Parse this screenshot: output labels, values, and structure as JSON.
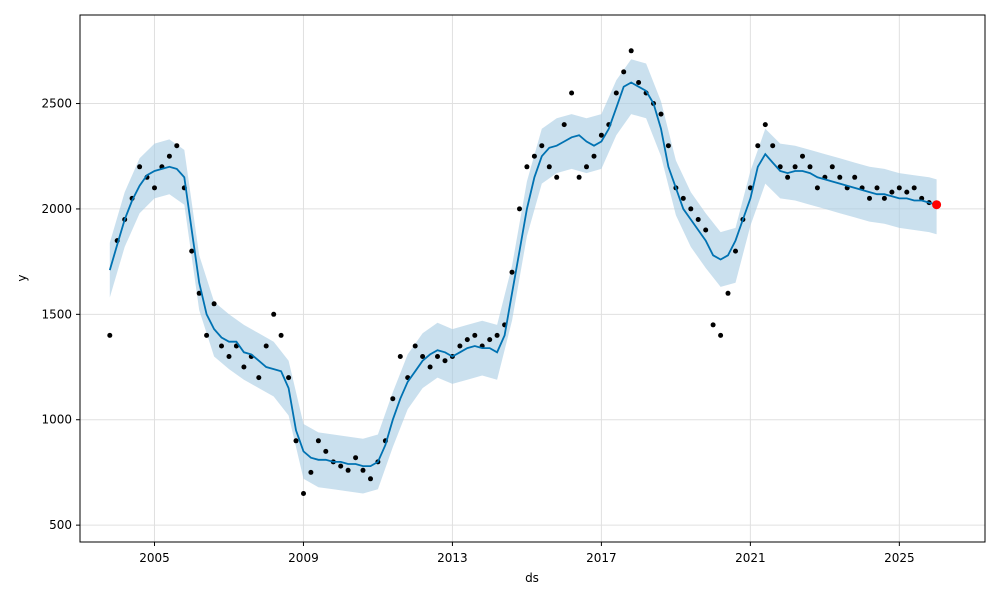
{
  "chart_data": {
    "type": "line",
    "title": "",
    "xlabel": "ds",
    "ylabel": "y",
    "xlim": [
      2003.0,
      2027.3
    ],
    "ylim": [
      420,
      2920
    ],
    "x_ticks": [
      2005,
      2009,
      2013,
      2017,
      2021,
      2025
    ],
    "x_tick_labels": [
      "2005",
      "2009",
      "2013",
      "2017",
      "2021",
      "2025"
    ],
    "y_ticks": [
      500,
      1000,
      1500,
      2000,
      2500
    ],
    "y_tick_labels": [
      "500",
      "1000",
      "1500",
      "2000",
      "2500"
    ],
    "grid": true,
    "colors": {
      "observed": "#000000",
      "forecast": "#0072b2",
      "interval": "#a6cbe3",
      "highlight": "#ff0000"
    },
    "series": [
      {
        "role": "observed",
        "style": "points",
        "x": [
          2003.8,
          2004.0,
          2004.2,
          2004.4,
          2004.6,
          2004.8,
          2005.0,
          2005.2,
          2005.4,
          2005.6,
          2005.8,
          2006.0,
          2006.2,
          2006.4,
          2006.6,
          2006.8,
          2007.0,
          2007.2,
          2007.4,
          2007.6,
          2007.8,
          2008.0,
          2008.2,
          2008.4,
          2008.6,
          2008.8,
          2009.0,
          2009.2,
          2009.4,
          2009.6,
          2009.8,
          2010.0,
          2010.2,
          2010.4,
          2010.6,
          2010.8,
          2011.0,
          2011.2,
          2011.4,
          2011.6,
          2011.8,
          2012.0,
          2012.2,
          2012.4,
          2012.6,
          2012.8,
          2013.0,
          2013.2,
          2013.4,
          2013.6,
          2013.8,
          2014.0,
          2014.2,
          2014.4,
          2014.6,
          2014.8,
          2015.0,
          2015.2,
          2015.4,
          2015.6,
          2015.8,
          2016.0,
          2016.2,
          2016.4,
          2016.6,
          2016.8,
          2017.0,
          2017.2,
          2017.4,
          2017.6,
          2017.8,
          2018.0,
          2018.2,
          2018.4,
          2018.6,
          2018.8,
          2019.0,
          2019.2,
          2019.4,
          2019.6,
          2019.8,
          2020.0,
          2020.2,
          2020.4,
          2020.6,
          2020.8,
          2021.0,
          2021.2,
          2021.4,
          2021.6,
          2021.8,
          2022.0,
          2022.2,
          2022.4,
          2022.6,
          2022.8,
          2023.0,
          2023.2,
          2023.4,
          2023.6,
          2023.8,
          2024.0,
          2024.2,
          2024.4,
          2024.6,
          2024.8,
          2025.0,
          2025.2,
          2025.4,
          2025.6,
          2025.8
        ],
        "y": [
          1400,
          1850,
          1950,
          2050,
          2200,
          2150,
          2100,
          2200,
          2250,
          2300,
          2100,
          1800,
          1600,
          1400,
          1550,
          1350,
          1300,
          1350,
          1250,
          1300,
          1200,
          1350,
          1500,
          1400,
          1200,
          900,
          650,
          750,
          900,
          850,
          800,
          780,
          760,
          820,
          760,
          720,
          800,
          900,
          1100,
          1300,
          1200,
          1350,
          1300,
          1250,
          1300,
          1280,
          1300,
          1350,
          1380,
          1400,
          1350,
          1380,
          1400,
          1450,
          1700,
          2000,
          2200,
          2250,
          2300,
          2200,
          2150,
          2400,
          2550,
          2150,
          2200,
          2250,
          2350,
          2400,
          2550,
          2650,
          2750,
          2600,
          2550,
          2500,
          2450,
          2300,
          2100,
          2050,
          2000,
          1950,
          1900,
          1450,
          1400,
          1600,
          1800,
          1950,
          2100,
          2300,
          2400,
          2300,
          2200,
          2150,
          2200,
          2250,
          2200,
          2100,
          2150,
          2200,
          2150,
          2100,
          2150,
          2100,
          2050,
          2100,
          2050,
          2080,
          2100,
          2080,
          2100,
          2050,
          2030
        ]
      },
      {
        "role": "forecast",
        "style": "line",
        "x": [
          2003.8,
          2004.0,
          2004.2,
          2004.4,
          2004.6,
          2004.8,
          2005.0,
          2005.2,
          2005.4,
          2005.6,
          2005.8,
          2006.0,
          2006.2,
          2006.4,
          2006.6,
          2006.8,
          2007.0,
          2007.2,
          2007.4,
          2007.6,
          2007.8,
          2008.0,
          2008.2,
          2008.4,
          2008.6,
          2008.8,
          2009.0,
          2009.2,
          2009.4,
          2009.6,
          2009.8,
          2010.0,
          2010.2,
          2010.4,
          2010.6,
          2010.8,
          2011.0,
          2011.2,
          2011.4,
          2011.6,
          2011.8,
          2012.0,
          2012.2,
          2012.4,
          2012.6,
          2012.8,
          2013.0,
          2013.2,
          2013.4,
          2013.6,
          2013.8,
          2014.0,
          2014.2,
          2014.4,
          2014.6,
          2014.8,
          2015.0,
          2015.2,
          2015.4,
          2015.6,
          2015.8,
          2016.0,
          2016.2,
          2016.4,
          2016.6,
          2016.8,
          2017.0,
          2017.2,
          2017.4,
          2017.6,
          2017.8,
          2018.0,
          2018.2,
          2018.4,
          2018.6,
          2018.8,
          2019.0,
          2019.2,
          2019.4,
          2019.6,
          2019.8,
          2020.0,
          2020.2,
          2020.4,
          2020.6,
          2020.8,
          2021.0,
          2021.2,
          2021.4,
          2021.6,
          2021.8,
          2022.0,
          2022.2,
          2022.4,
          2022.6,
          2022.8,
          2023.0,
          2023.2,
          2023.4,
          2023.6,
          2023.8,
          2024.0,
          2024.2,
          2024.4,
          2024.6,
          2024.8,
          2025.0,
          2025.2,
          2025.4,
          2025.6,
          2025.8,
          2026.0
        ],
        "y": [
          1710,
          1830,
          1950,
          2040,
          2110,
          2160,
          2180,
          2190,
          2200,
          2190,
          2150,
          1900,
          1650,
          1500,
          1430,
          1390,
          1370,
          1370,
          1320,
          1310,
          1280,
          1250,
          1240,
          1230,
          1150,
          950,
          850,
          820,
          810,
          810,
          800,
          800,
          790,
          790,
          780,
          780,
          800,
          880,
          1000,
          1100,
          1180,
          1230,
          1280,
          1310,
          1330,
          1320,
          1300,
          1320,
          1340,
          1350,
          1340,
          1340,
          1320,
          1400,
          1600,
          1800,
          2000,
          2150,
          2250,
          2290,
          2300,
          2320,
          2340,
          2350,
          2320,
          2300,
          2320,
          2380,
          2480,
          2580,
          2600,
          2580,
          2560,
          2500,
          2380,
          2200,
          2100,
          2000,
          1950,
          1900,
          1850,
          1780,
          1760,
          1780,
          1850,
          1950,
          2050,
          2200,
          2260,
          2220,
          2180,
          2170,
          2180,
          2180,
          2170,
          2150,
          2140,
          2130,
          2120,
          2110,
          2100,
          2090,
          2080,
          2070,
          2070,
          2060,
          2050,
          2050,
          2040,
          2040,
          2030,
          2020
        ]
      },
      {
        "role": "interval",
        "style": "band",
        "x": [
          2003.8,
          2004.2,
          2004.6,
          2005.0,
          2005.4,
          2005.8,
          2006.2,
          2006.6,
          2007.0,
          2007.4,
          2007.8,
          2008.2,
          2008.6,
          2009.0,
          2009.4,
          2009.8,
          2010.2,
          2010.6,
          2011.0,
          2011.4,
          2011.8,
          2012.2,
          2012.6,
          2013.0,
          2013.4,
          2013.8,
          2014.2,
          2014.6,
          2015.0,
          2015.4,
          2015.8,
          2016.2,
          2016.6,
          2017.0,
          2017.4,
          2017.8,
          2018.2,
          2018.6,
          2019.0,
          2019.4,
          2019.8,
          2020.2,
          2020.6,
          2021.0,
          2021.4,
          2021.8,
          2022.2,
          2022.6,
          2023.0,
          2023.4,
          2023.8,
          2024.2,
          2024.6,
          2025.0,
          2025.4,
          2025.8,
          2026.0
        ],
        "lower": [
          1580,
          1820,
          1980,
          2050,
          2070,
          2020,
          1520,
          1300,
          1240,
          1190,
          1150,
          1110,
          1020,
          720,
          680,
          670,
          660,
          650,
          670,
          870,
          1050,
          1150,
          1200,
          1170,
          1190,
          1210,
          1190,
          1470,
          1870,
          2120,
          2170,
          2190,
          2170,
          2190,
          2350,
          2450,
          2430,
          2250,
          1970,
          1820,
          1720,
          1630,
          1650,
          1920,
          2120,
          2050,
          2040,
          2020,
          2000,
          1980,
          1960,
          1940,
          1930,
          1910,
          1900,
          1890,
          1880
        ],
        "upper": [
          1840,
          2080,
          2240,
          2310,
          2330,
          2280,
          1780,
          1560,
          1500,
          1450,
          1410,
          1370,
          1280,
          980,
          940,
          930,
          920,
          910,
          930,
          1130,
          1310,
          1410,
          1460,
          1430,
          1450,
          1470,
          1450,
          1730,
          2130,
          2380,
          2430,
          2450,
          2430,
          2450,
          2610,
          2710,
          2690,
          2510,
          2230,
          2080,
          1980,
          1890,
          1910,
          2180,
          2380,
          2310,
          2300,
          2280,
          2260,
          2240,
          2220,
          2200,
          2190,
          2170,
          2160,
          2150,
          2140
        ]
      },
      {
        "role": "highlight",
        "style": "points",
        "x": [
          2026.0
        ],
        "y": [
          2020
        ]
      }
    ]
  }
}
